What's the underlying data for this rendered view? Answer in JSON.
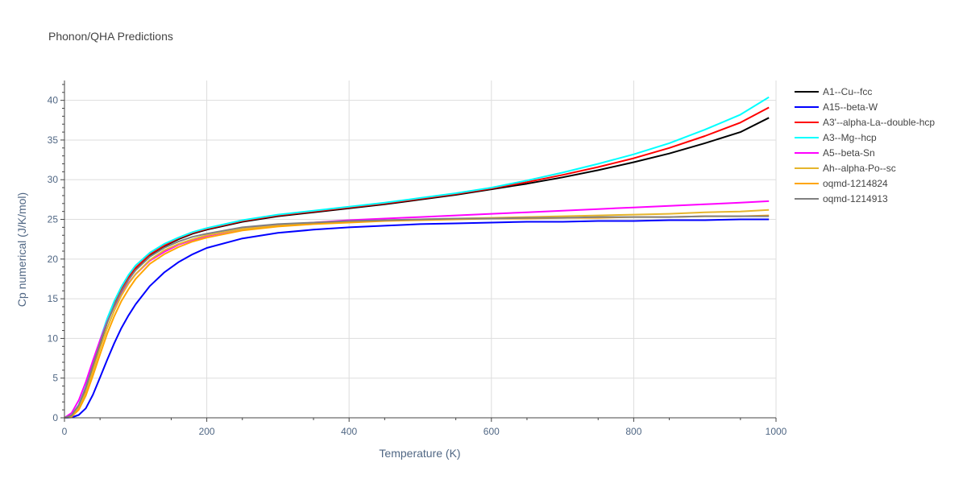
{
  "chart_data": {
    "type": "line",
    "title": "Phonon/QHA Predictions",
    "xlabel": "Temperature (K)",
    "ylabel": "Cp numerical (J/K/mol)",
    "xlim": [
      0,
      1000
    ],
    "ylim": [
      0,
      42.5
    ],
    "xticks": [
      0,
      200,
      400,
      600,
      800,
      1000
    ],
    "yticks": [
      0,
      5,
      10,
      15,
      20,
      25,
      30,
      35,
      40
    ],
    "grid": true,
    "legend_position": "right",
    "series": [
      {
        "name": "A1--Cu--fcc",
        "color": "#000000",
        "x": [
          0,
          10,
          20,
          30,
          40,
          50,
          60,
          70,
          80,
          90,
          100,
          120,
          140,
          160,
          180,
          200,
          250,
          300,
          350,
          400,
          450,
          500,
          550,
          600,
          650,
          700,
          750,
          800,
          850,
          900,
          950,
          990
        ],
        "y": [
          0,
          0.3,
          1.5,
          3.6,
          6.4,
          9.3,
          12,
          14.2,
          16.1,
          17.6,
          18.8,
          20.5,
          21.6,
          22.5,
          23.2,
          23.7,
          24.7,
          25.4,
          25.9,
          26.4,
          26.9,
          27.5,
          28.1,
          28.8,
          29.5,
          30.3,
          31.2,
          32.2,
          33.3,
          34.6,
          36.0,
          37.8
        ]
      },
      {
        "name": "A15--beta-W",
        "color": "#0000ff",
        "x": [
          0,
          10,
          20,
          30,
          40,
          50,
          60,
          70,
          80,
          90,
          100,
          120,
          140,
          160,
          180,
          200,
          250,
          300,
          350,
          400,
          450,
          500,
          550,
          600,
          650,
          700,
          750,
          800,
          850,
          900,
          950,
          990
        ],
        "y": [
          0,
          0.05,
          0.35,
          1.2,
          2.9,
          5.1,
          7.3,
          9.4,
          11.3,
          12.9,
          14.3,
          16.6,
          18.3,
          19.6,
          20.6,
          21.4,
          22.6,
          23.3,
          23.7,
          24.0,
          24.2,
          24.4,
          24.5,
          24.6,
          24.7,
          24.7,
          24.8,
          24.8,
          24.9,
          24.9,
          25.0,
          25.0
        ]
      },
      {
        "name": "A3'--alpha-La--double-hcp",
        "color": "#ff0000",
        "x": [
          0,
          10,
          20,
          30,
          40,
          50,
          60,
          70,
          80,
          90,
          100,
          120,
          140,
          160,
          180,
          200,
          250,
          300,
          350,
          400,
          450,
          500,
          550,
          600,
          650,
          700,
          750,
          800,
          850,
          900,
          950,
          990
        ],
        "y": [
          0,
          0.3,
          1.5,
          3.7,
          6.5,
          9.4,
          12.1,
          14.3,
          16.2,
          17.7,
          18.9,
          20.6,
          21.7,
          22.6,
          23.3,
          23.8,
          24.8,
          25.5,
          26.0,
          26.5,
          27.0,
          27.6,
          28.2,
          28.9,
          29.7,
          30.6,
          31.6,
          32.7,
          34.0,
          35.5,
          37.2,
          39.1
        ]
      },
      {
        "name": "A3--Mg--hcp",
        "color": "#00ffff",
        "x": [
          0,
          10,
          20,
          30,
          40,
          50,
          60,
          70,
          80,
          90,
          100,
          120,
          140,
          160,
          180,
          200,
          250,
          300,
          350,
          400,
          450,
          500,
          550,
          600,
          650,
          700,
          750,
          800,
          850,
          900,
          950,
          990
        ],
        "y": [
          0,
          0.3,
          1.6,
          3.9,
          6.8,
          9.8,
          12.5,
          14.7,
          16.5,
          18.0,
          19.2,
          20.8,
          21.9,
          22.7,
          23.4,
          23.9,
          24.9,
          25.6,
          26.1,
          26.6,
          27.1,
          27.7,
          28.3,
          29.0,
          29.9,
          30.9,
          32.0,
          33.2,
          34.6,
          36.3,
          38.2,
          40.4
        ]
      },
      {
        "name": "A5--beta-Sn",
        "color": "#ff00ff",
        "x": [
          0,
          10,
          20,
          30,
          40,
          50,
          60,
          70,
          80,
          90,
          100,
          120,
          140,
          160,
          180,
          200,
          250,
          300,
          350,
          400,
          450,
          500,
          550,
          600,
          650,
          700,
          750,
          800,
          850,
          900,
          950,
          990
        ],
        "y": [
          0,
          0.6,
          2.2,
          4.5,
          7.2,
          9.8,
          12.1,
          14.0,
          15.6,
          17.0,
          18.1,
          19.8,
          20.9,
          21.8,
          22.4,
          22.9,
          23.8,
          24.3,
          24.6,
          24.9,
          25.1,
          25.3,
          25.5,
          25.7,
          25.9,
          26.1,
          26.3,
          26.5,
          26.7,
          26.9,
          27.1,
          27.3
        ]
      },
      {
        "name": "Ah--alpha-Po--sc",
        "color": "#e5b52c",
        "x": [
          0,
          10,
          20,
          30,
          40,
          50,
          60,
          70,
          80,
          90,
          100,
          120,
          140,
          160,
          180,
          200,
          250,
          300,
          350,
          400,
          450,
          500,
          550,
          600,
          650,
          700,
          750,
          800,
          850,
          900,
          950,
          990
        ],
        "y": [
          0,
          0.2,
          1.2,
          3.2,
          5.9,
          8.7,
          11.3,
          13.5,
          15.4,
          16.9,
          18.1,
          19.9,
          21.1,
          21.9,
          22.5,
          23.0,
          23.8,
          24.2,
          24.5,
          24.7,
          24.9,
          25.0,
          25.1,
          25.2,
          25.3,
          25.4,
          25.5,
          25.6,
          25.7,
          25.9,
          26.0,
          26.2
        ]
      },
      {
        "name": "oqmd-1214824",
        "color": "#ffa500",
        "x": [
          0,
          10,
          20,
          30,
          40,
          50,
          60,
          70,
          80,
          90,
          100,
          120,
          140,
          160,
          180,
          200,
          250,
          300,
          350,
          400,
          450,
          500,
          550,
          600,
          650,
          700,
          750,
          800,
          850,
          900,
          950,
          990
        ],
        "y": [
          0,
          0.15,
          1.0,
          2.8,
          5.3,
          8.0,
          10.6,
          12.8,
          14.7,
          16.2,
          17.5,
          19.4,
          20.6,
          21.5,
          22.2,
          22.7,
          23.6,
          24.1,
          24.4,
          24.6,
          24.8,
          24.9,
          25.0,
          25.1,
          25.1,
          25.2,
          25.2,
          25.3,
          25.3,
          25.4,
          25.4,
          25.5
        ]
      },
      {
        "name": "oqmd-1214913",
        "color": "#808080",
        "x": [
          0,
          10,
          20,
          30,
          40,
          50,
          60,
          70,
          80,
          90,
          100,
          120,
          140,
          160,
          180,
          200,
          250,
          300,
          350,
          400,
          450,
          500,
          550,
          600,
          650,
          700,
          750,
          800,
          850,
          900,
          950,
          990
        ],
        "y": [
          0,
          0.3,
          1.6,
          3.8,
          6.6,
          9.4,
          12.0,
          14.1,
          15.9,
          17.4,
          18.6,
          20.3,
          21.4,
          22.2,
          22.8,
          23.2,
          24.0,
          24.4,
          24.6,
          24.8,
          24.9,
          25.0,
          25.1,
          25.1,
          25.2,
          25.2,
          25.3,
          25.3,
          25.3,
          25.4,
          25.4,
          25.4
        ]
      }
    ]
  }
}
